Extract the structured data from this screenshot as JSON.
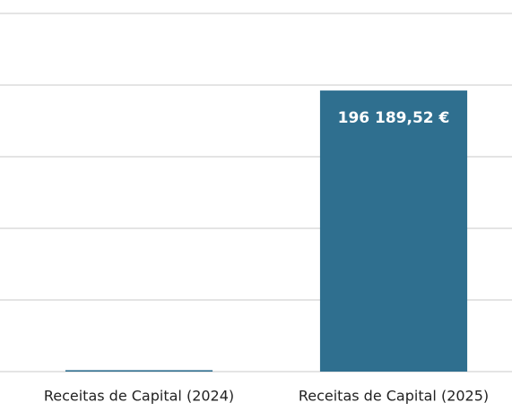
{
  "chart_data": {
    "type": "bar",
    "categories": [
      "Receitas de Capital (2024)",
      "Receitas de Capital (2025)"
    ],
    "values": [
      1000,
      196189.52
    ],
    "value_labels": [
      null,
      "196 189,52 €"
    ],
    "color": "#2f6f8f",
    "ylim": [
      0,
      250000
    ],
    "yticks": [
      0,
      50000,
      100000,
      150000,
      200000,
      250000
    ],
    "grid": true
  }
}
